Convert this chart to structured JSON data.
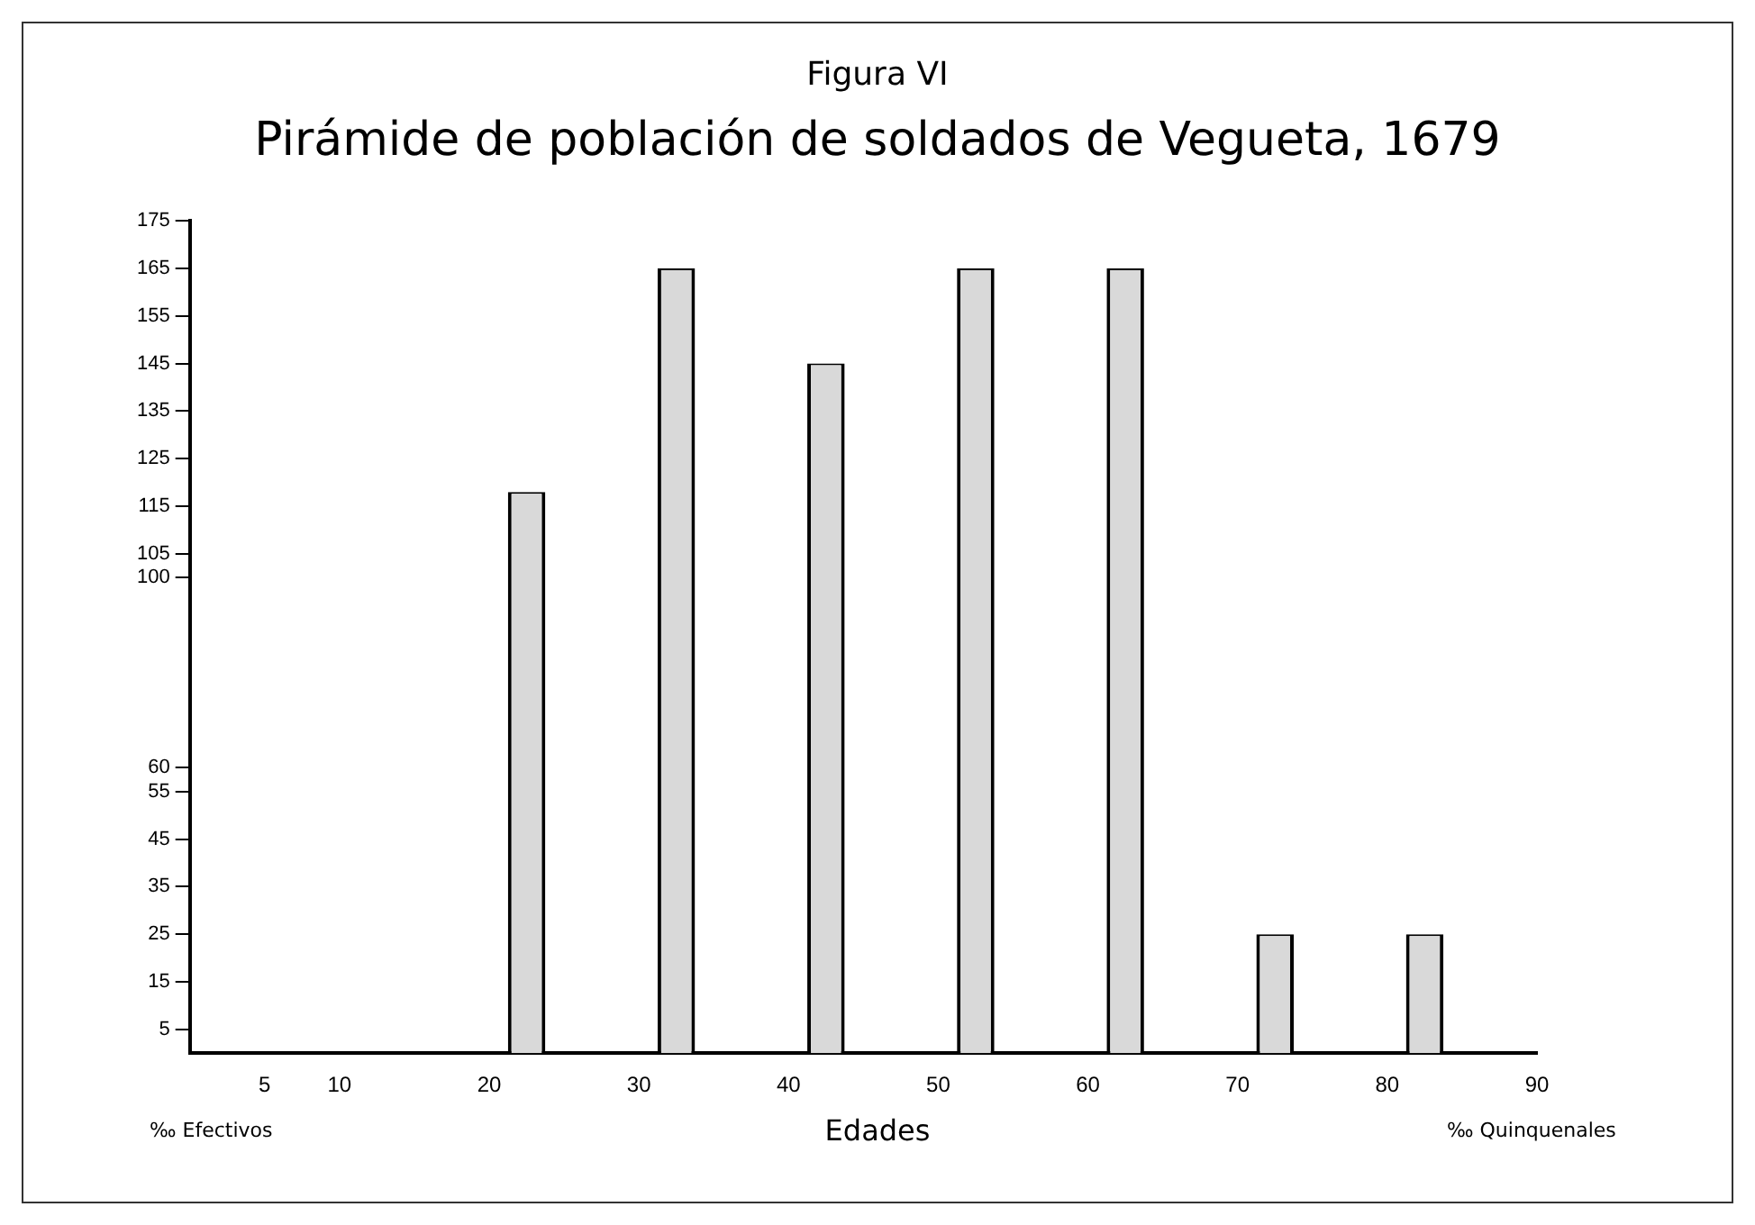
{
  "chart_data": {
    "type": "bar",
    "title": "Pirámide de población de soldados de Vegueta, 1679",
    "xlabel": "Edades",
    "annotations": [
      "Figura VI",
      "‰ Efectivos",
      "‰ Quinquenales"
    ],
    "x": [
      22.5,
      32.5,
      42.5,
      52.5,
      62.5,
      72.5,
      82.5
    ],
    "values": [
      118,
      165,
      145,
      165,
      165,
      25,
      25
    ],
    "color": "#d9d9d9",
    "xlim": [
      0,
      90
    ],
    "xticks": [
      5,
      10,
      20,
      30,
      40,
      50,
      60,
      70,
      80,
      90
    ],
    "ylim": [
      0,
      175
    ],
    "yticks": [
      5,
      15,
      25,
      35,
      45,
      55,
      60,
      100,
      105,
      115,
      125,
      135,
      145,
      155,
      165,
      175
    ],
    "grid": false,
    "legend": false
  }
}
